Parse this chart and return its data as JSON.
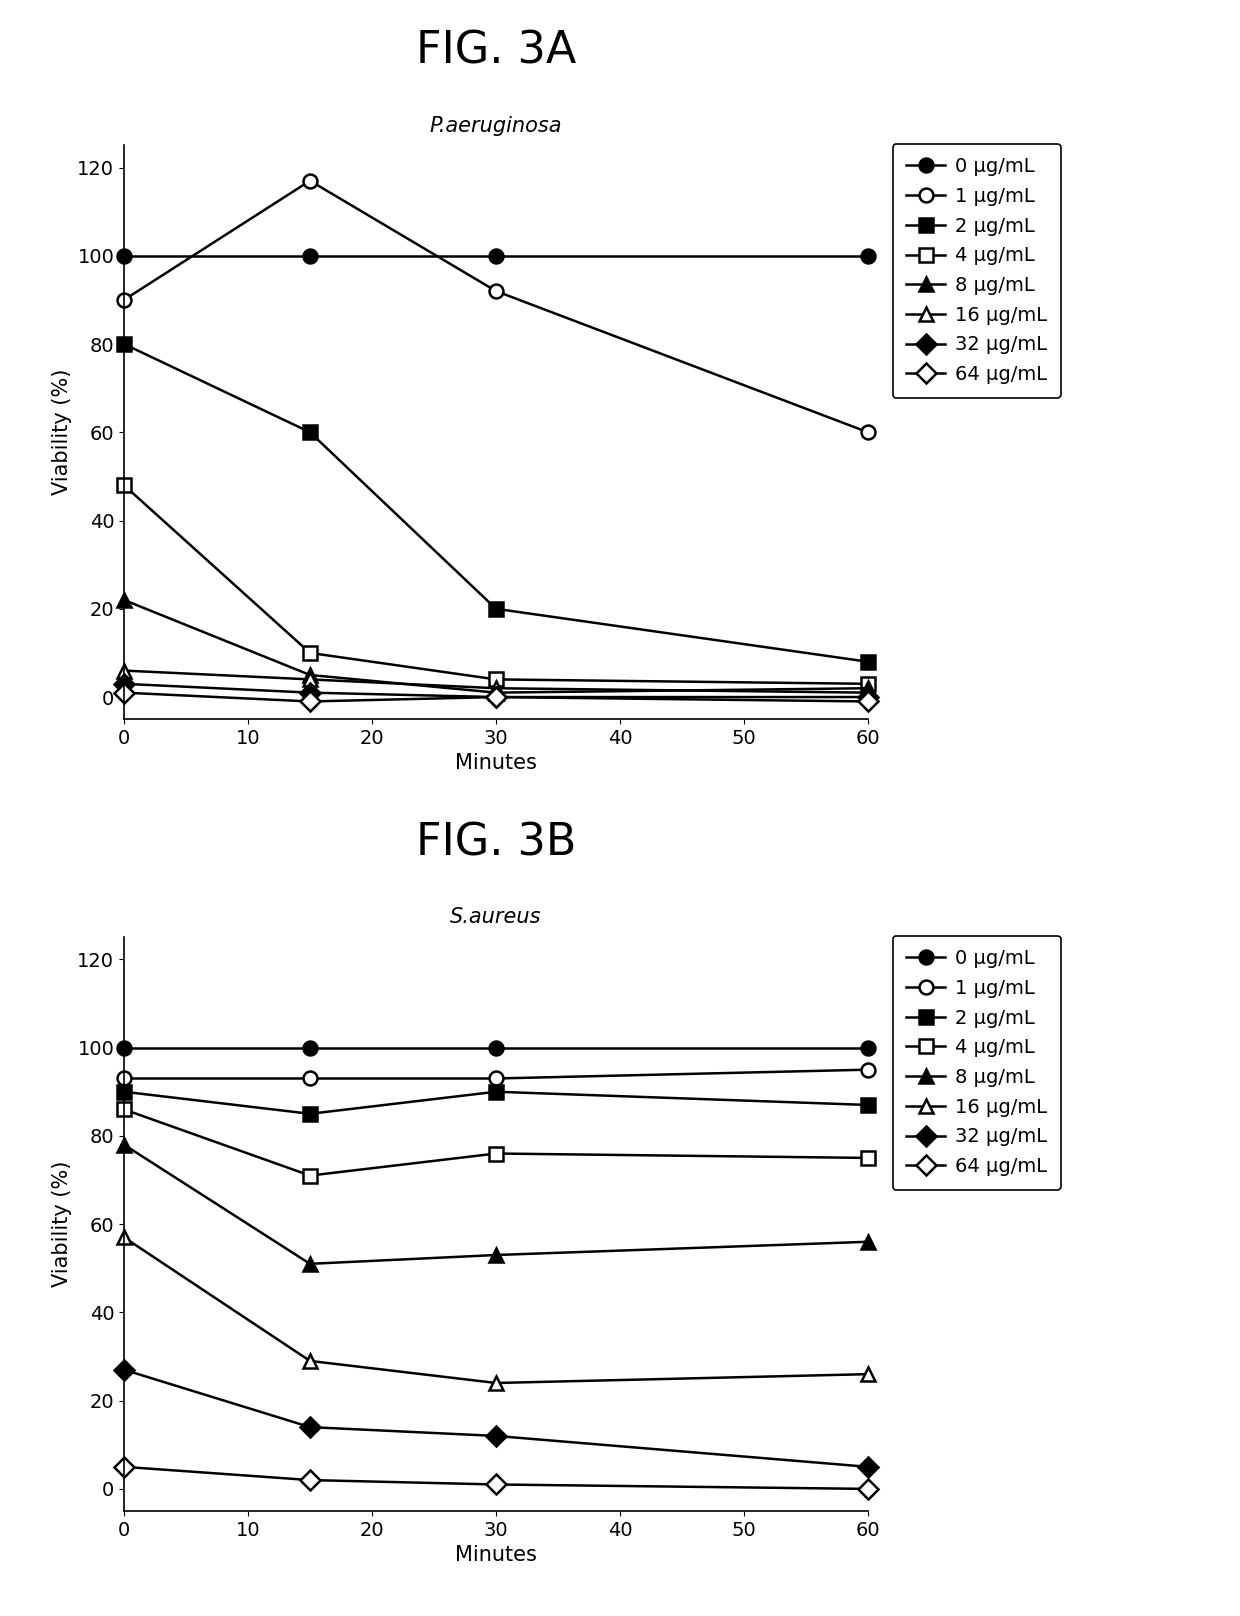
{
  "fig3a": {
    "title": "FIG. 3A",
    "subtitle": "P.aeruginosa",
    "xlabel": "Minutes",
    "ylabel": "Viability (%)",
    "xlim": [
      -1,
      62
    ],
    "ylim": [
      -5,
      125
    ],
    "yticks": [
      0,
      20,
      40,
      60,
      80,
      100,
      120
    ],
    "xticks": [
      0,
      10,
      20,
      30,
      40,
      50,
      60
    ],
    "x": [
      0,
      15,
      30,
      60
    ],
    "series": [
      {
        "label": "0 μg/mL",
        "y": [
          100,
          100,
          100,
          100
        ],
        "marker": "o",
        "filled": true,
        "color": "black"
      },
      {
        "label": "1 μg/mL",
        "y": [
          90,
          117,
          92,
          60
        ],
        "marker": "o",
        "filled": false,
        "color": "black"
      },
      {
        "label": "2 μg/mL",
        "y": [
          80,
          60,
          20,
          8
        ],
        "marker": "s",
        "filled": true,
        "color": "black"
      },
      {
        "label": "4 μg/mL",
        "y": [
          48,
          10,
          4,
          3
        ],
        "marker": "s",
        "filled": false,
        "color": "black"
      },
      {
        "label": "8 μg/mL",
        "y": [
          22,
          5,
          1,
          2
        ],
        "marker": "^",
        "filled": true,
        "color": "black"
      },
      {
        "label": "16 μg/mL",
        "y": [
          6,
          4,
          2,
          1
        ],
        "marker": "^",
        "filled": false,
        "color": "black"
      },
      {
        "label": "32 μg/mL",
        "y": [
          3,
          1,
          0,
          0
        ],
        "marker": "D",
        "filled": true,
        "color": "black"
      },
      {
        "label": "64 μg/mL",
        "y": [
          1,
          -1,
          0,
          -1
        ],
        "marker": "D",
        "filled": false,
        "color": "black"
      }
    ]
  },
  "fig3b": {
    "title": "FIG. 3B",
    "subtitle": "S.aureus",
    "xlabel": "Minutes",
    "ylabel": "Viability (%)",
    "xlim": [
      -1,
      62
    ],
    "ylim": [
      -5,
      125
    ],
    "yticks": [
      0,
      20,
      40,
      60,
      80,
      100,
      120
    ],
    "xticks": [
      0,
      10,
      20,
      30,
      40,
      50,
      60
    ],
    "x": [
      0,
      15,
      30,
      60
    ],
    "series": [
      {
        "label": "0 μg/mL",
        "y": [
          100,
          100,
          100,
          100
        ],
        "marker": "o",
        "filled": true,
        "color": "black"
      },
      {
        "label": "1 μg/mL",
        "y": [
          93,
          93,
          93,
          95
        ],
        "marker": "o",
        "filled": false,
        "color": "black"
      },
      {
        "label": "2 μg/mL",
        "y": [
          90,
          85,
          90,
          87
        ],
        "marker": "s",
        "filled": true,
        "color": "black"
      },
      {
        "label": "4 μg/mL",
        "y": [
          86,
          71,
          76,
          75
        ],
        "marker": "s",
        "filled": false,
        "color": "black"
      },
      {
        "label": "8 μg/mL",
        "y": [
          78,
          51,
          53,
          56
        ],
        "marker": "^",
        "filled": true,
        "color": "black"
      },
      {
        "label": "16 μg/mL",
        "y": [
          57,
          29,
          24,
          26
        ],
        "marker": "^",
        "filled": false,
        "color": "black"
      },
      {
        "label": "32 μg/mL",
        "y": [
          27,
          14,
          12,
          5
        ],
        "marker": "D",
        "filled": true,
        "color": "black"
      },
      {
        "label": "64 μg/mL",
        "y": [
          5,
          2,
          1,
          0
        ],
        "marker": "D",
        "filled": false,
        "color": "black"
      }
    ]
  },
  "background_color": "#ffffff",
  "legend_fontsize": 14,
  "axis_label_fontsize": 15,
  "tick_fontsize": 14,
  "subtitle_fontsize": 15,
  "title_fontsize": 32,
  "linewidth": 1.8,
  "markersize": 10
}
